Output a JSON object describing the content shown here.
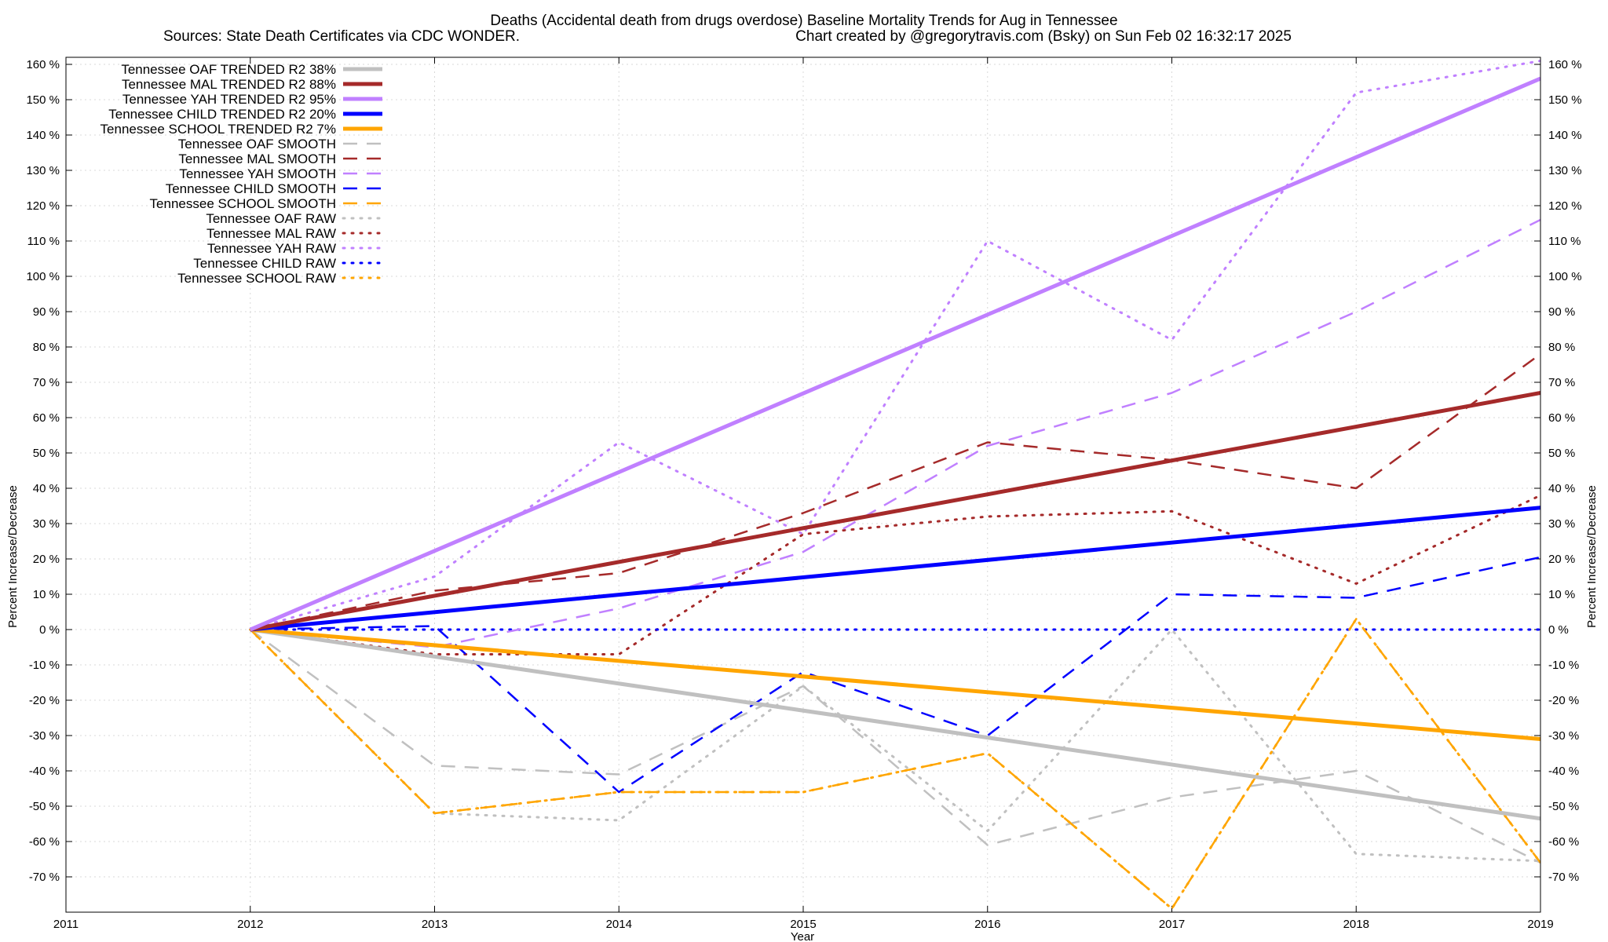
{
  "chart_data": {
    "type": "line",
    "title": "Deaths (Accidental death from drugs overdose)  Baseline Mortality Trends for Aug in Tennessee",
    "subtitle_left": "Sources: State Death Certificates via CDC WONDER.",
    "subtitle_right": "Chart created by @gregorytravis.com (Bsky) on Sun Feb 02 16:32:17 2025",
    "xlabel": "Year",
    "ylabel_left": "Percent Increase/Decrease",
    "ylabel_right": "Percent Increase/Decrease",
    "xlim": [
      2011,
      2019
    ],
    "ylim": [
      -80,
      162
    ],
    "x_ticks": [
      2011,
      2012,
      2013,
      2014,
      2015,
      2016,
      2017,
      2018,
      2019
    ],
    "y_ticks": [
      -70,
      -60,
      -50,
      -40,
      -30,
      -20,
      -10,
      0,
      10,
      20,
      30,
      40,
      50,
      60,
      70,
      80,
      90,
      100,
      110,
      120,
      130,
      140,
      150,
      160
    ],
    "y_tick_suffix": " %",
    "grid": true,
    "legend_position": "top-left",
    "series": [
      {
        "name": "Tennessee OAF TRENDED R2  38%",
        "style": "solid",
        "color": "#c0c0c0",
        "x": [
          2012,
          2019
        ],
        "y": [
          0,
          -53.5
        ]
      },
      {
        "name": "Tennessee MAL TRENDED R2  88%",
        "style": "solid",
        "color": "#a52a2a",
        "x": [
          2012,
          2019
        ],
        "y": [
          0,
          67
        ]
      },
      {
        "name": "Tennessee YAH TRENDED R2  95%",
        "style": "solid",
        "color": "#c080ff",
        "x": [
          2012,
          2019
        ],
        "y": [
          0,
          156
        ]
      },
      {
        "name": "Tennessee CHILD TRENDED R2  20%",
        "style": "solid",
        "color": "#0000ff",
        "x": [
          2012,
          2019
        ],
        "y": [
          0,
          34.5
        ]
      },
      {
        "name": "Tennessee SCHOOL TRENDED R2   7%",
        "style": "solid",
        "color": "#ffa500",
        "x": [
          2012,
          2019
        ],
        "y": [
          0,
          -31
        ]
      },
      {
        "name": "Tennessee OAF SMOOTH",
        "style": "dash",
        "color": "#c0c0c0",
        "x": [
          2012,
          2013,
          2014,
          2015,
          2016,
          2017,
          2018,
          2019
        ],
        "y": [
          0,
          -38.5,
          -41,
          -16,
          -61,
          -47.5,
          -40,
          -66
        ]
      },
      {
        "name": "Tennessee MAL SMOOTH",
        "style": "dash",
        "color": "#a52a2a",
        "x": [
          2012,
          2013,
          2014,
          2015,
          2016,
          2017,
          2018,
          2019
        ],
        "y": [
          0,
          11,
          16,
          33,
          53,
          48,
          40,
          78
        ]
      },
      {
        "name": "Tennessee YAH SMOOTH",
        "style": "dash",
        "color": "#c080ff",
        "x": [
          2012,
          2013,
          2014,
          2015,
          2016,
          2017,
          2018,
          2019
        ],
        "y": [
          0,
          -5,
          6,
          22,
          52,
          67,
          90,
          116
        ]
      },
      {
        "name": "Tennessee CHILD SMOOTH",
        "style": "dash",
        "color": "#0000ff",
        "x": [
          2012,
          2013,
          2014,
          2015,
          2016,
          2017,
          2018,
          2019
        ],
        "y": [
          0,
          1,
          -46,
          -12,
          -30,
          10,
          9,
          20.5
        ]
      },
      {
        "name": "Tennessee SCHOOL SMOOTH",
        "style": "dash",
        "color": "#ffa500",
        "x": [
          2012,
          2013,
          2014,
          2015,
          2016,
          2017,
          2018,
          2019
        ],
        "y": [
          0,
          -52,
          -46,
          -46,
          -35,
          -79,
          3,
          -66
        ]
      },
      {
        "name": "Tennessee OAF RAW",
        "style": "dot",
        "color": "#c0c0c0",
        "x": [
          2012,
          2013,
          2014,
          2015,
          2016,
          2017,
          2018,
          2019
        ],
        "y": [
          0,
          -52,
          -54,
          -16,
          -57,
          0,
          -63.5,
          -65.5
        ]
      },
      {
        "name": "Tennessee MAL RAW",
        "style": "dot",
        "color": "#a52a2a",
        "x": [
          2012,
          2013,
          2014,
          2015,
          2016,
          2017,
          2018,
          2019
        ],
        "y": [
          0,
          -7,
          -7,
          27,
          32,
          33.5,
          13,
          38
        ]
      },
      {
        "name": "Tennessee YAH RAW",
        "style": "dot",
        "color": "#c080ff",
        "x": [
          2012,
          2013,
          2014,
          2015,
          2016,
          2017,
          2018,
          2019
        ],
        "y": [
          0,
          15,
          53,
          27,
          110,
          82,
          152,
          161
        ]
      },
      {
        "name": "Tennessee CHILD RAW",
        "style": "dot",
        "color": "#0000ff",
        "x": [
          2012,
          2013,
          2014,
          2015,
          2016,
          2017,
          2018,
          2019
        ],
        "y": [
          0,
          0,
          0,
          0,
          0,
          0,
          0,
          0
        ]
      },
      {
        "name": "Tennessee SCHOOL RAW",
        "style": "dot",
        "color": "#ffa500",
        "x": [
          2012,
          2013,
          2014,
          2015,
          2016,
          2017,
          2018,
          2019
        ],
        "y": [
          0,
          -52,
          -46,
          -46,
          -35,
          -79,
          3,
          -66
        ]
      }
    ]
  }
}
